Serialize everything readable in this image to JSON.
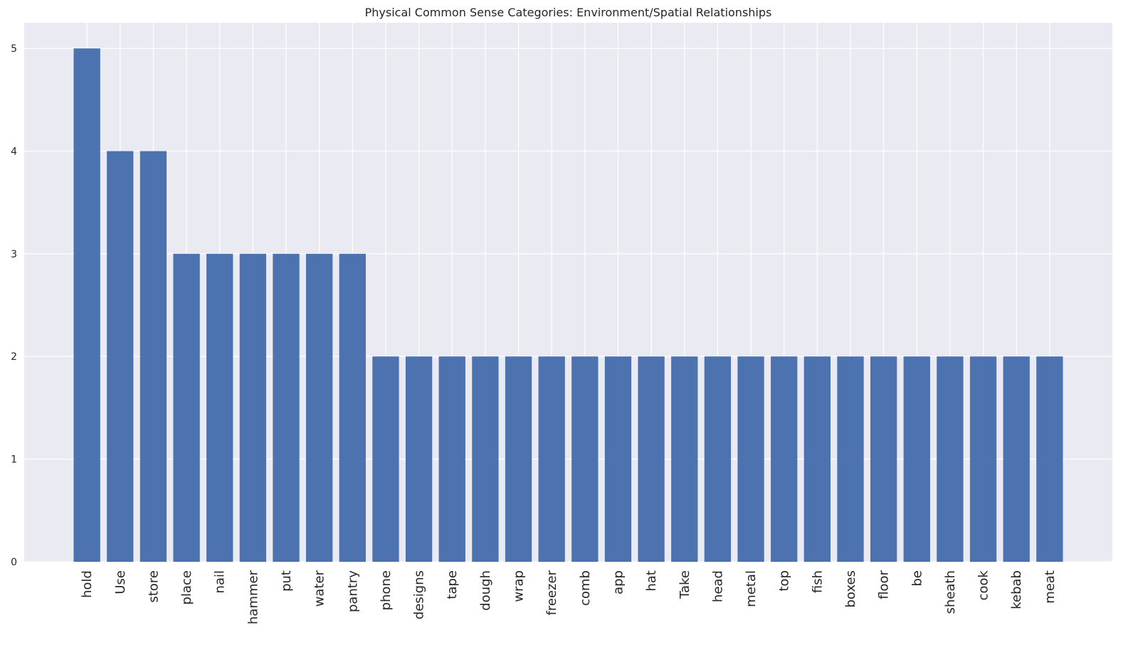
{
  "chart_data": {
    "type": "bar",
    "title": "Physical Common Sense Categories: Environment/Spatial Relationships",
    "xlabel": "",
    "ylabel": "",
    "categories": [
      "hold",
      "Use",
      "store",
      "place",
      "nail",
      "hammer",
      "put",
      "water",
      "pantry",
      "phone",
      "designs",
      "tape",
      "dough",
      "wrap",
      "freezer",
      "comb",
      "app",
      "hat",
      "Take",
      "head",
      "metal",
      "top",
      "fish",
      "boxes",
      "floor",
      "be",
      "sheath",
      "cook",
      "kebab",
      "meat"
    ],
    "values": [
      5,
      4,
      4,
      3,
      3,
      3,
      3,
      3,
      3,
      2,
      2,
      2,
      2,
      2,
      2,
      2,
      2,
      2,
      2,
      2,
      2,
      2,
      2,
      2,
      2,
      2,
      2,
      2,
      2,
      2
    ],
    "ylim": [
      0,
      5.25
    ],
    "yticks": [
      0,
      1,
      2,
      3,
      4,
      5
    ],
    "grid": true,
    "bar_color": "#4c72b0",
    "background_color": "#eaeaf2",
    "grid_color": "#ffffff"
  }
}
